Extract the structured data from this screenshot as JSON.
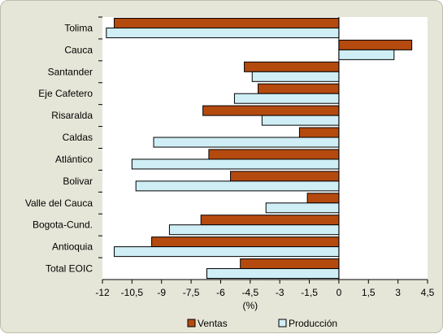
{
  "chart_data": {
    "type": "bar",
    "orientation": "horizontal",
    "categories": [
      "Tolima",
      "Cauca",
      "Santander",
      "Eje Cafetero",
      "Risaralda",
      "Caldas",
      "Atlántico",
      "Bolivar",
      "Valle del Cauca",
      "Bogota-Cund.",
      "Antioquia",
      "Total EOIC"
    ],
    "series": [
      {
        "name": "Ventas",
        "color": "#b54a0f",
        "values": [
          -11.4,
          3.7,
          -4.8,
          -4.1,
          -6.9,
          -2.0,
          -6.6,
          -5.5,
          -1.6,
          -7.0,
          -9.5,
          -5.0
        ]
      },
      {
        "name": "Producción",
        "color": "#cfeef6",
        "values": [
          -11.8,
          2.8,
          -4.4,
          -5.3,
          -3.9,
          -9.4,
          -10.5,
          -10.3,
          -3.7,
          -8.6,
          -11.4,
          -6.7
        ]
      }
    ],
    "xlabel": "(%)",
    "xlim": [
      -12,
      4.5
    ],
    "xticks": [
      "-12",
      "-10,5",
      "-9",
      "-7,5",
      "-6",
      "-4,5",
      "-3",
      "-1,5",
      "0",
      "1,5",
      "3",
      "4,5"
    ],
    "grid": false,
    "legend_position": "bottom"
  }
}
